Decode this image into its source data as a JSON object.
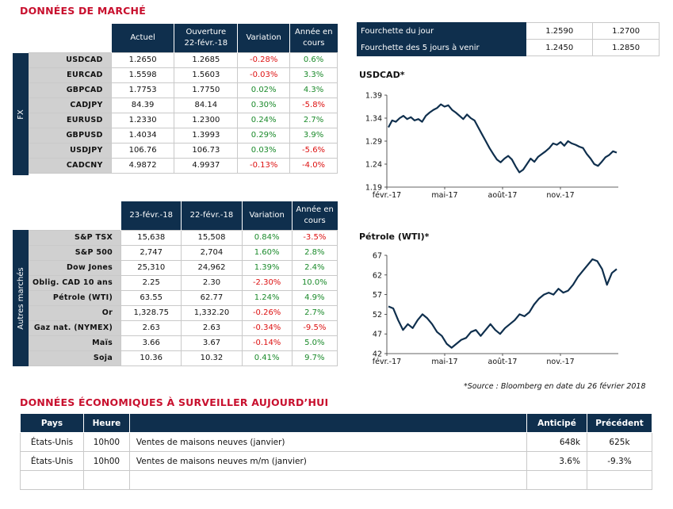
{
  "market_title": "DONNÉES DE MARCHÉ",
  "fx": {
    "side_label": "FX",
    "headers": [
      "Actuel",
      "Ouverture\n22-févr.-18",
      "Variation",
      "Année en\ncours"
    ],
    "rows": [
      {
        "label": "USDCAD",
        "actuel": "1.2650",
        "ouverture": "1.2685",
        "variation": "-0.28%",
        "annee": "0.6%"
      },
      {
        "label": "EURCAD",
        "actuel": "1.5598",
        "ouverture": "1.5603",
        "variation": "-0.03%",
        "annee": "3.3%"
      },
      {
        "label": "GBPCAD",
        "actuel": "1.7753",
        "ouverture": "1.7750",
        "variation": "0.02%",
        "annee": "4.3%"
      },
      {
        "label": "CADJPY",
        "actuel": "84.39",
        "ouverture": "84.14",
        "variation": "0.30%",
        "annee": "-5.8%"
      },
      {
        "label": "EURUSD",
        "actuel": "1.2330",
        "ouverture": "1.2300",
        "variation": "0.24%",
        "annee": "2.7%"
      },
      {
        "label": "GBPUSD",
        "actuel": "1.4034",
        "ouverture": "1.3993",
        "variation": "0.29%",
        "annee": "3.9%"
      },
      {
        "label": "USDJPY",
        "actuel": "106.76",
        "ouverture": "106.73",
        "variation": "0.03%",
        "annee": "-5.6%"
      },
      {
        "label": "CADCNY",
        "actuel": "4.9872",
        "ouverture": "4.9937",
        "variation": "-0.13%",
        "annee": "-4.0%"
      }
    ]
  },
  "other": {
    "side_label": "Autres marchés",
    "headers": [
      "23-févr.-18",
      "22-févr.-18",
      "Variation",
      "Année en\ncours"
    ],
    "rows": [
      {
        "label": "S&P TSX",
        "actuel": "15,638",
        "ouverture": "15,508",
        "variation": "0.84%",
        "annee": "-3.5%"
      },
      {
        "label": "S&P 500",
        "actuel": "2,747",
        "ouverture": "2,704",
        "variation": "1.60%",
        "annee": "2.8%"
      },
      {
        "label": "Dow Jones",
        "actuel": "25,310",
        "ouverture": "24,962",
        "variation": "1.39%",
        "annee": "2.4%"
      },
      {
        "label": "Oblig. CAD 10 ans",
        "actuel": "2.25",
        "ouverture": "2.30",
        "variation": "-2.30%",
        "annee": "10.0%"
      },
      {
        "label": "Pétrole (WTI)",
        "actuel": "63.55",
        "ouverture": "62.77",
        "variation": "1.24%",
        "annee": "4.9%"
      },
      {
        "label": "Or",
        "actuel": "1,328.75",
        "ouverture": "1,332.20",
        "variation": "-0.26%",
        "annee": "2.7%"
      },
      {
        "label": "Gaz nat. (NYMEX)",
        "actuel": "2.63",
        "ouverture": "2.63",
        "variation": "-0.34%",
        "annee": "-9.5%"
      },
      {
        "label": "Maïs",
        "actuel": "3.66",
        "ouverture": "3.67",
        "variation": "-0.14%",
        "annee": "5.0%"
      },
      {
        "label": "Soja",
        "actuel": "10.36",
        "ouverture": "10.32",
        "variation": "0.41%",
        "annee": "9.7%"
      }
    ]
  },
  "ranges": [
    {
      "label": "Fourchette du jour",
      "low": "1.2590",
      "high": "1.2700"
    },
    {
      "label": "Fourchette des 5 jours à venir",
      "low": "1.2450",
      "high": "1.2850"
    }
  ],
  "colors": {
    "navy": "#0f2f4d",
    "red": "#c8102e",
    "neg": "#dd1111",
    "pos": "#1a8a2a"
  },
  "chart_data": [
    {
      "type": "line",
      "title": "USDCAD*",
      "ylim": [
        1.19,
        1.39
      ],
      "yticks": [
        "1.39",
        "1.34",
        "1.29",
        "1.24",
        "1.19"
      ],
      "xticks": [
        "févr.-17",
        "mai-17",
        "août-17",
        "nov.-17"
      ],
      "series": [
        {
          "values": [
            1.32,
            1.335,
            1.332,
            1.34,
            1.345,
            1.338,
            1.342,
            1.335,
            1.338,
            1.332,
            1.345,
            1.352,
            1.358,
            1.362,
            1.37,
            1.365,
            1.368,
            1.358,
            1.352,
            1.345,
            1.338,
            1.348,
            1.34,
            1.335,
            1.32,
            1.305,
            1.29,
            1.275,
            1.262,
            1.25,
            1.244,
            1.252,
            1.258,
            1.25,
            1.235,
            1.222,
            1.228,
            1.24,
            1.252,
            1.245,
            1.256,
            1.262,
            1.268,
            1.275,
            1.285,
            1.282,
            1.288,
            1.28,
            1.29,
            1.285,
            1.282,
            1.278,
            1.275,
            1.262,
            1.252,
            1.24,
            1.236,
            1.245,
            1.255,
            1.26,
            1.268,
            1.265
          ]
        }
      ]
    },
    {
      "type": "line",
      "title": "Pétrole (WTI)*",
      "ylim": [
        42,
        67
      ],
      "yticks": [
        "67",
        "62",
        "57",
        "52",
        "47",
        "42"
      ],
      "xticks": [
        "févr.-17",
        "mai-17",
        "août-17",
        "nov.-17"
      ],
      "series": [
        {
          "values": [
            54.0,
            53.5,
            50.5,
            48.0,
            49.5,
            48.5,
            50.5,
            52.0,
            51.0,
            49.5,
            47.5,
            46.5,
            44.5,
            43.5,
            44.5,
            45.5,
            46.0,
            47.5,
            48.0,
            46.5,
            48.0,
            49.5,
            48.0,
            47.0,
            48.5,
            49.5,
            50.5,
            52.0,
            51.5,
            52.5,
            54.5,
            56.0,
            57.0,
            57.5,
            57.0,
            58.5,
            57.5,
            58.0,
            59.5,
            61.5,
            63.0,
            64.5,
            66.0,
            65.5,
            63.5,
            59.5,
            62.5,
            63.5
          ]
        }
      ]
    }
  ],
  "source_note": "*Source : Bloomberg en date du  26 février 2018",
  "econ": {
    "title": "DONNÉES ÉCONOMIQUES À SURVEILLER AUJOURD’HUI",
    "headers": {
      "pays": "Pays",
      "heure": "Heure",
      "desc": "",
      "anticipe": "Anticipé",
      "precedent": "Précédent"
    },
    "rows": [
      {
        "pays": "États-Unis",
        "heure": "10h00",
        "desc": "Ventes de maisons neuves (janvier)",
        "anticipe": "648k",
        "precedent": "625k"
      },
      {
        "pays": "États-Unis",
        "heure": "10h00",
        "desc": "Ventes de maisons neuves m/m (janvier)",
        "anticipe": "3.6%",
        "precedent": "-9.3%"
      },
      {
        "pays": "",
        "heure": "",
        "desc": "",
        "anticipe": "",
        "precedent": ""
      }
    ]
  }
}
